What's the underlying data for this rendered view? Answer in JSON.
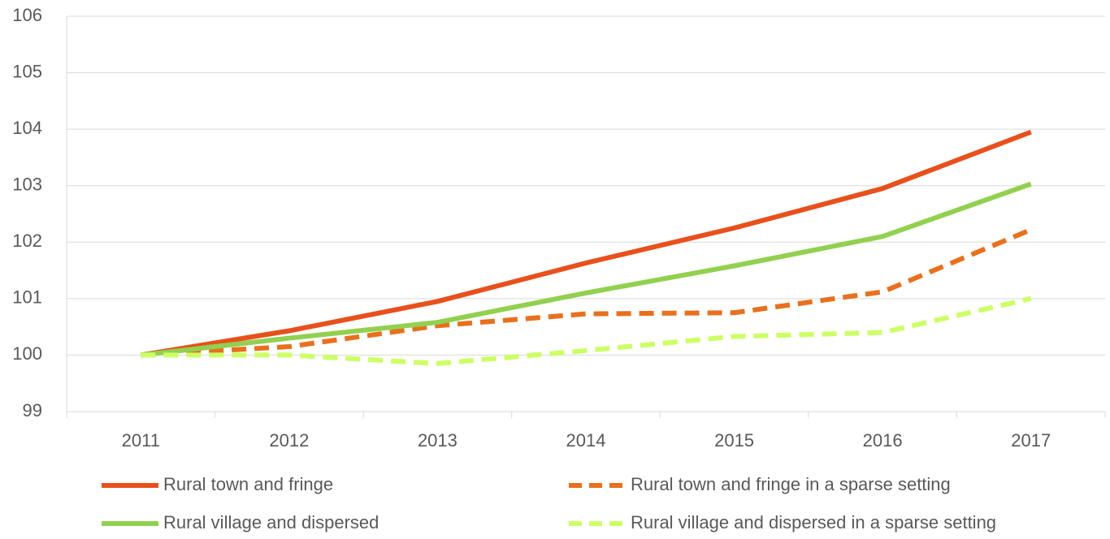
{
  "chart_data": {
    "type": "line",
    "categories": [
      "2011",
      "2012",
      "2013",
      "2014",
      "2015",
      "2016",
      "2017"
    ],
    "series": [
      {
        "name": "Rural town and fringe",
        "color": "#e8501c",
        "line_style": "solid",
        "values": [
          100,
          100.43,
          100.95,
          101.63,
          102.25,
          102.95,
          103.95
        ]
      },
      {
        "name": "Rural town and fringe in a sparse setting",
        "color": "#e8701e",
        "line_style": "dashed",
        "values": [
          100,
          100.15,
          100.52,
          100.73,
          100.75,
          101.12,
          102.22
        ]
      },
      {
        "name": "Rural village and dispersed",
        "color": "#92d050",
        "line_style": "solid",
        "values": [
          100,
          100.3,
          100.58,
          101.1,
          101.58,
          102.1,
          103.03
        ]
      },
      {
        "name": "Rural village and dispersed in a sparse setting",
        "color": "#ccff66",
        "line_style": "dashed",
        "values": [
          100,
          100,
          99.85,
          100.08,
          100.33,
          100.4,
          101.0
        ]
      }
    ],
    "ylim": [
      99,
      106
    ],
    "yticks": [
      99,
      100,
      101,
      102,
      103,
      104,
      105,
      106
    ],
    "grid": true,
    "legend": "bottom"
  }
}
